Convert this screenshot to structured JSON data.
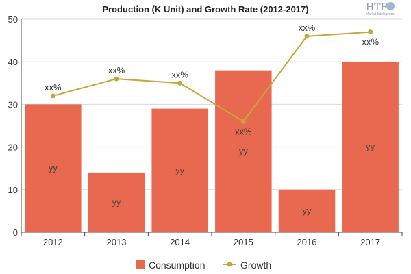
{
  "chart_data": {
    "type": "bar",
    "title": "Production (K Unit) and Growth Rate (2012-2017)",
    "categories": [
      "2012",
      "2013",
      "2014",
      "2015",
      "2016",
      "2017"
    ],
    "ylim": [
      0,
      50
    ],
    "yticks": [
      0,
      10,
      20,
      30,
      40,
      50
    ],
    "grid": true,
    "legend_position": "bottom",
    "series": [
      {
        "name": "Consumption",
        "kind": "bar",
        "color": "#e8694f",
        "values": [
          30,
          14,
          29,
          38,
          10,
          40
        ],
        "labels": [
          "yy",
          "yy",
          "yy",
          "yy",
          "yy",
          "yy"
        ]
      },
      {
        "name": "Growth",
        "kind": "line",
        "color": "#c9a43b",
        "values": [
          32,
          36,
          35,
          26,
          46,
          47
        ],
        "labels": [
          "xx%",
          "xx%",
          "xx%",
          "xx%",
          "xx%",
          "xx%"
        ]
      }
    ]
  },
  "logo": {
    "text": "HTF",
    "subtext": "Market Intelligence"
  }
}
